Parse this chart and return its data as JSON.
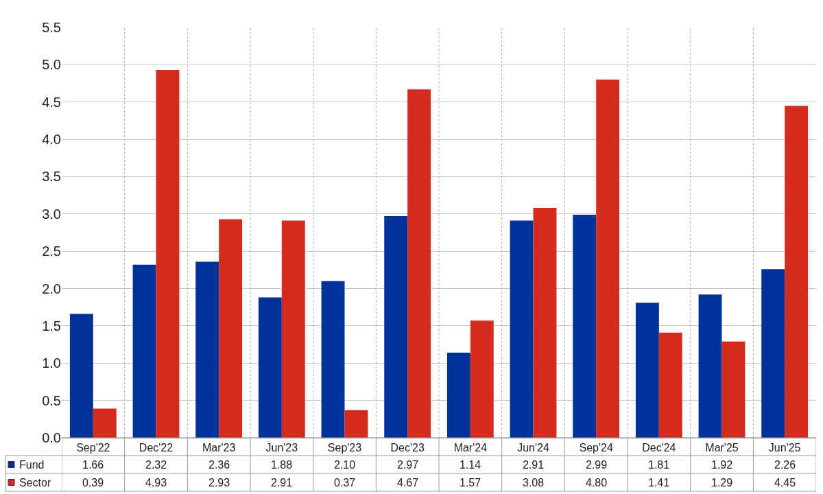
{
  "chart_data": {
    "type": "bar",
    "categories": [
      "Sep'22",
      "Dec'22",
      "Mar'23",
      "Jun'23",
      "Sep'23",
      "Dec'23",
      "Mar'24",
      "Jun'24",
      "Sep'24",
      "Dec'24",
      "Mar'25",
      "Jun'25"
    ],
    "series": [
      {
        "name": "Fund",
        "color": "#003299",
        "values": [
          1.66,
          2.32,
          2.36,
          1.88,
          2.1,
          2.97,
          1.14,
          2.91,
          2.99,
          1.81,
          1.92,
          2.26
        ],
        "value_labels": [
          "1.66",
          "2.32",
          "2.36",
          "1.88",
          "2.10",
          "2.97",
          "1.14",
          "2.91",
          "2.99",
          "1.81",
          "1.92",
          "2.26"
        ]
      },
      {
        "name": "Sector",
        "color": "#d52b1e",
        "values": [
          0.39,
          4.93,
          2.93,
          2.91,
          0.37,
          4.67,
          1.57,
          3.08,
          4.8,
          1.41,
          1.29,
          4.45
        ],
        "value_labels": [
          "0.39",
          "4.93",
          "2.93",
          "2.91",
          "0.37",
          "4.67",
          "1.57",
          "3.08",
          "4.80",
          "1.41",
          "1.29",
          "4.45"
        ]
      }
    ],
    "ylim": [
      0,
      5.5
    ],
    "yticks": [
      {
        "value": 0,
        "label": "0.0"
      },
      {
        "value": 0.5,
        "label": "0.5"
      },
      {
        "value": 1,
        "label": "1.0"
      },
      {
        "value": 1.5,
        "label": "1.5"
      },
      {
        "value": 2,
        "label": "2.0"
      },
      {
        "value": 2.5,
        "label": "2.5"
      },
      {
        "value": 3,
        "label": "3.0"
      },
      {
        "value": 3.5,
        "label": "3.5"
      },
      {
        "value": 4,
        "label": "4.0"
      },
      {
        "value": 4.5,
        "label": "4.5"
      },
      {
        "value": 5,
        "label": "5.0"
      },
      {
        "value": 5.5,
        "label": "5.5"
      }
    ],
    "grid": true,
    "legend": "bottom left"
  }
}
